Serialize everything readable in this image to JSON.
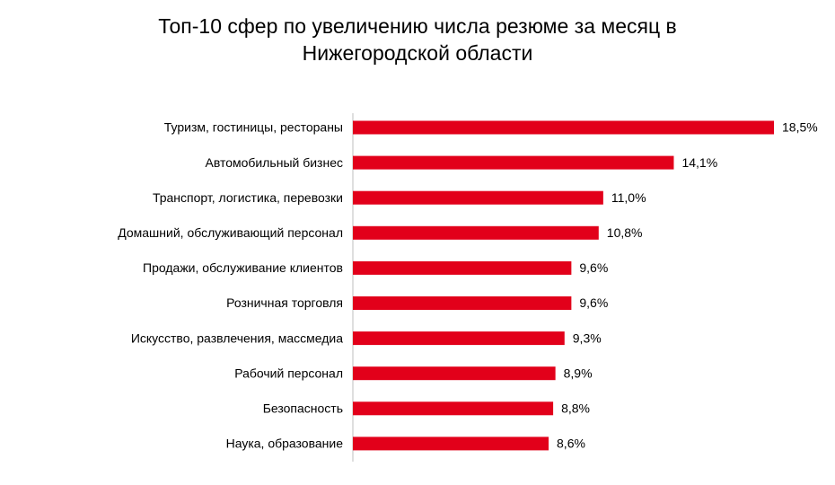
{
  "chart_data": {
    "type": "hbar",
    "title": "Топ-10 сфер по увеличению числа резюме за месяц в Нижегородской области",
    "categories": [
      "Туризм, гостиницы, рестораны",
      "Автомобильный бизнес",
      "Транспорт, логистика, перевозки",
      "Домашний, обслуживающий персонал",
      "Продажи, обслуживание клиентов",
      "Розничная торговля",
      "Искусство, развлечения, массмедиа",
      "Рабочий персонал",
      "Безопасность",
      "Наука, образование"
    ],
    "values": [
      18.5,
      14.1,
      11.0,
      10.8,
      9.6,
      9.6,
      9.3,
      8.9,
      8.8,
      8.6
    ],
    "value_labels": [
      "18,5%",
      "14,1%",
      "11,0%",
      "10,8%",
      "9,6%",
      "9,6%",
      "9,3%",
      "8,9%",
      "8,8%",
      "8,6%"
    ],
    "color": "#e2001a"
  }
}
